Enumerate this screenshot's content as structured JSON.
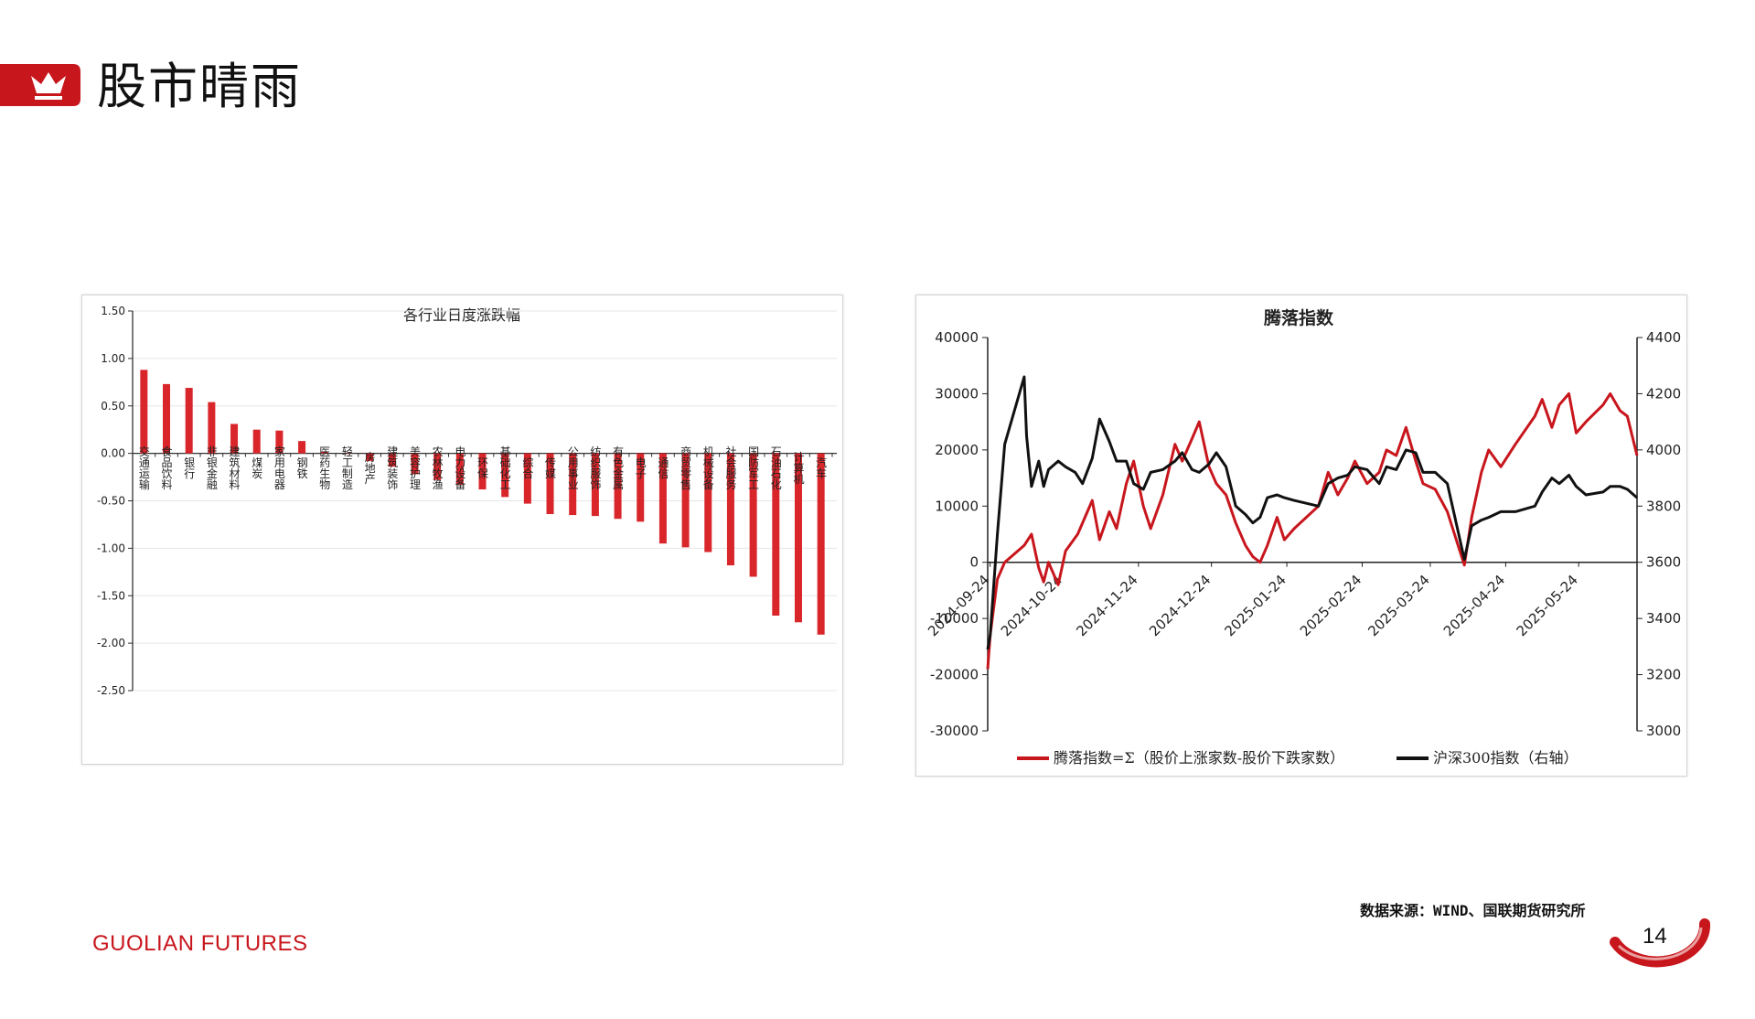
{
  "header": {
    "title": "股市晴雨"
  },
  "source_note": "数据来源：WIND、国联期货研究所",
  "footer": {
    "brand": "GUOLIAN FUTURES",
    "page_number": "14"
  },
  "colors": {
    "brand_red": "#c8161d",
    "bar_red": "#d9262b",
    "line_red": "#c8161d",
    "line_black": "#111111"
  },
  "icons": {
    "header_badge": "crown-icon"
  },
  "chart_data": [
    {
      "type": "bar",
      "title": "各行业日度涨跌幅",
      "ylim": [
        -2.5,
        1.5
      ],
      "yticks": [
        "1.50",
        "1.00",
        "0.50",
        "0.00",
        "-0.50",
        "-1.00",
        "-1.50",
        "-2.00",
        "-2.50"
      ],
      "grid": true,
      "categories": [
        "交通运输",
        "食品饮料",
        "银行",
        "非银金融",
        "建筑材料",
        "煤炭",
        "家用电器",
        "钢铁",
        "医药生物",
        "轻工制造",
        "房地产",
        "建筑装饰",
        "美容护理",
        "农林牧渔",
        "电力设备",
        "环保",
        "基础化工",
        "综合",
        "传媒",
        "公用事业",
        "纺织服饰",
        "有色金属",
        "电子",
        "通信",
        "商贸零售",
        "机械设备",
        "社会服务",
        "国防军工",
        "石油石化",
        "计算机",
        "汽车"
      ],
      "values": [
        0.88,
        0.73,
        0.69,
        0.54,
        0.31,
        0.25,
        0.24,
        0.13,
        0.02,
        0.0,
        -0.08,
        -0.14,
        -0.22,
        -0.28,
        -0.33,
        -0.38,
        -0.46,
        -0.53,
        -0.64,
        -0.65,
        -0.66,
        -0.69,
        -0.72,
        -0.95,
        -0.99,
        -1.04,
        -1.18,
        -1.3,
        -1.71,
        -1.78,
        -1.91
      ]
    },
    {
      "type": "line",
      "title": "腾落指数",
      "x_ticks": [
        "2024-09-24",
        "2024-10-24",
        "2024-11-24",
        "2024-12-24",
        "2025-01-24",
        "2025-02-24",
        "2025-03-24",
        "2025-04-24",
        "2025-05-24"
      ],
      "y_left_ticks": [
        "40000",
        "30000",
        "20000",
        "10000",
        "0",
        "-10000",
        "-20000",
        "-30000"
      ],
      "ylim_left": [
        -30000,
        40000
      ],
      "y_right_ticks": [
        "4400",
        "4200",
        "4000",
        "3800",
        "3600",
        "3400",
        "3200",
        "3000"
      ],
      "ylim_right": [
        3000,
        4400
      ],
      "legend_position": "bottom",
      "series": [
        {
          "name": "腾落指数=Σ（股价上涨家数-股价下跌家数）",
          "axis": "left",
          "color": "#c8161d",
          "points": [
            [
              "2024-09-23",
              -19000
            ],
            [
              "2024-09-24",
              -13000
            ],
            [
              "2024-09-27",
              -3000
            ],
            [
              "2024-09-30",
              0
            ],
            [
              "2024-10-08",
              3000
            ],
            [
              "2024-10-11",
              5000
            ],
            [
              "2024-10-14",
              -1000
            ],
            [
              "2024-10-16",
              -3500
            ],
            [
              "2024-10-18",
              0
            ],
            [
              "2024-10-22",
              -4000
            ],
            [
              "2024-10-25",
              2000
            ],
            [
              "2024-10-30",
              5000
            ],
            [
              "2024-11-05",
              11000
            ],
            [
              "2024-11-08",
              4000
            ],
            [
              "2024-11-12",
              9000
            ],
            [
              "2024-11-15",
              6000
            ],
            [
              "2024-11-19",
              14000
            ],
            [
              "2024-11-22",
              18000
            ],
            [
              "2024-11-26",
              10000
            ],
            [
              "2024-11-29",
              6000
            ],
            [
              "2024-12-04",
              12000
            ],
            [
              "2024-12-09",
              21000
            ],
            [
              "2024-12-12",
              18000
            ],
            [
              "2024-12-16",
              22000
            ],
            [
              "2024-12-19",
              25000
            ],
            [
              "2024-12-23",
              17000
            ],
            [
              "2024-12-26",
              14000
            ],
            [
              "2024-12-30",
              12000
            ],
            [
              "2025-01-03",
              7000
            ],
            [
              "2025-01-07",
              3000
            ],
            [
              "2025-01-10",
              1000
            ],
            [
              "2025-01-13",
              0
            ],
            [
              "2025-01-16",
              3000
            ],
            [
              "2025-01-20",
              8000
            ],
            [
              "2025-01-23",
              4000
            ],
            [
              "2025-01-27",
              6000
            ],
            [
              "2025-02-06",
              10000
            ],
            [
              "2025-02-10",
              16000
            ],
            [
              "2025-02-14",
              12000
            ],
            [
              "2025-02-18",
              15000
            ],
            [
              "2025-02-21",
              18000
            ],
            [
              "2025-02-26",
              14000
            ],
            [
              "2025-03-03",
              16000
            ],
            [
              "2025-03-06",
              20000
            ],
            [
              "2025-03-10",
              19000
            ],
            [
              "2025-03-14",
              24000
            ],
            [
              "2025-03-18",
              18000
            ],
            [
              "2025-03-21",
              14000
            ],
            [
              "2025-03-26",
              13000
            ],
            [
              "2025-03-31",
              9000
            ],
            [
              "2025-04-07",
              -500
            ],
            [
              "2025-04-10",
              8000
            ],
            [
              "2025-04-14",
              16000
            ],
            [
              "2025-04-17",
              20000
            ],
            [
              "2025-04-22",
              17000
            ],
            [
              "2025-04-28",
              21000
            ],
            [
              "2025-05-06",
              26000
            ],
            [
              "2025-05-09",
              29000
            ],
            [
              "2025-05-13",
              24000
            ],
            [
              "2025-05-16",
              28000
            ],
            [
              "2025-05-20",
              30000
            ],
            [
              "2025-05-23",
              23000
            ],
            [
              "2025-05-27",
              25000
            ],
            [
              "2025-06-03",
              28000
            ],
            [
              "2025-06-06",
              30000
            ],
            [
              "2025-06-10",
              27000
            ],
            [
              "2025-06-13",
              26000
            ],
            [
              "2025-06-17",
              19000
            ]
          ]
        },
        {
          "name": "沪深300指数（右轴）",
          "axis": "right",
          "color": "#111111",
          "points": [
            [
              "2024-09-23",
              3290
            ],
            [
              "2024-09-24",
              3340
            ],
            [
              "2024-09-27",
              3700
            ],
            [
              "2024-09-30",
              4020
            ],
            [
              "2024-10-08",
              4260
            ],
            [
              "2024-10-09",
              4050
            ],
            [
              "2024-10-11",
              3870
            ],
            [
              "2024-10-14",
              3960
            ],
            [
              "2024-10-16",
              3870
            ],
            [
              "2024-10-18",
              3930
            ],
            [
              "2024-10-22",
              3960
            ],
            [
              "2024-10-25",
              3940
            ],
            [
              "2024-10-29",
              3920
            ],
            [
              "2024-11-01",
              3880
            ],
            [
              "2024-11-05",
              3970
            ],
            [
              "2024-11-08",
              4110
            ],
            [
              "2024-11-12",
              4030
            ],
            [
              "2024-11-15",
              3960
            ],
            [
              "2024-11-19",
              3960
            ],
            [
              "2024-11-22",
              3880
            ],
            [
              "2024-11-26",
              3860
            ],
            [
              "2024-11-29",
              3920
            ],
            [
              "2024-12-04",
              3930
            ],
            [
              "2024-12-09",
              3960
            ],
            [
              "2024-12-12",
              3990
            ],
            [
              "2024-12-16",
              3930
            ],
            [
              "2024-12-19",
              3920
            ],
            [
              "2024-12-23",
              3950
            ],
            [
              "2024-12-26",
              3990
            ],
            [
              "2024-12-30",
              3940
            ],
            [
              "2025-01-03",
              3800
            ],
            [
              "2025-01-07",
              3770
            ],
            [
              "2025-01-10",
              3740
            ],
            [
              "2025-01-13",
              3760
            ],
            [
              "2025-01-16",
              3830
            ],
            [
              "2025-01-20",
              3840
            ],
            [
              "2025-01-23",
              3830
            ],
            [
              "2025-01-27",
              3820
            ],
            [
              "2025-02-06",
              3800
            ],
            [
              "2025-02-10",
              3880
            ],
            [
              "2025-02-14",
              3900
            ],
            [
              "2025-02-18",
              3910
            ],
            [
              "2025-02-21",
              3940
            ],
            [
              "2025-02-26",
              3930
            ],
            [
              "2025-03-03",
              3880
            ],
            [
              "2025-03-06",
              3940
            ],
            [
              "2025-03-10",
              3930
            ],
            [
              "2025-03-14",
              4000
            ],
            [
              "2025-03-18",
              3990
            ],
            [
              "2025-03-21",
              3920
            ],
            [
              "2025-03-26",
              3920
            ],
            [
              "2025-03-31",
              3880
            ],
            [
              "2025-04-07",
              3610
            ],
            [
              "2025-04-10",
              3730
            ],
            [
              "2025-04-14",
              3750
            ],
            [
              "2025-04-17",
              3760
            ],
            [
              "2025-04-22",
              3780
            ],
            [
              "2025-04-28",
              3780
            ],
            [
              "2025-05-06",
              3800
            ],
            [
              "2025-05-09",
              3850
            ],
            [
              "2025-05-13",
              3900
            ],
            [
              "2025-05-16",
              3880
            ],
            [
              "2025-05-20",
              3910
            ],
            [
              "2025-05-23",
              3870
            ],
            [
              "2025-05-27",
              3840
            ],
            [
              "2025-06-03",
              3850
            ],
            [
              "2025-06-06",
              3870
            ],
            [
              "2025-06-10",
              3870
            ],
            [
              "2025-06-13",
              3860
            ],
            [
              "2025-06-17",
              3830
            ]
          ]
        }
      ]
    }
  ]
}
